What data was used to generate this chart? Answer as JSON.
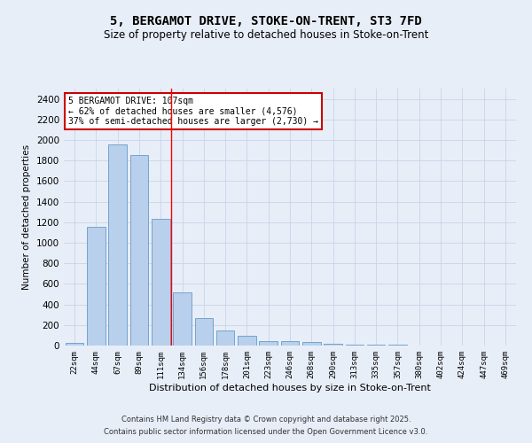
{
  "title_line1": "5, BERGAMOT DRIVE, STOKE-ON-TRENT, ST3 7FD",
  "title_line2": "Size of property relative to detached houses in Stoke-on-Trent",
  "xlabel": "Distribution of detached houses by size in Stoke-on-Trent",
  "ylabel": "Number of detached properties",
  "categories": [
    "22sqm",
    "44sqm",
    "67sqm",
    "89sqm",
    "111sqm",
    "134sqm",
    "156sqm",
    "178sqm",
    "201sqm",
    "223sqm",
    "246sqm",
    "268sqm",
    "290sqm",
    "313sqm",
    "335sqm",
    "357sqm",
    "380sqm",
    "402sqm",
    "424sqm",
    "447sqm",
    "469sqm"
  ],
  "values": [
    25,
    1155,
    1960,
    1850,
    1230,
    520,
    270,
    150,
    95,
    42,
    40,
    38,
    20,
    10,
    8,
    5,
    3,
    2,
    2,
    1,
    2
  ],
  "bar_color": "#b8d0eb",
  "bar_edge_color": "#6699cc",
  "grid_color": "#c8d4e8",
  "background_color": "#e8eef8",
  "redline_x": 4.5,
  "annotation_text": "5 BERGAMOT DRIVE: 107sqm\n← 62% of detached houses are smaller (4,576)\n37% of semi-detached houses are larger (2,730) →",
  "annotation_box_color": "#ffffff",
  "annotation_box_edge": "#cc0000",
  "footnote1": "Contains HM Land Registry data © Crown copyright and database right 2025.",
  "footnote2": "Contains public sector information licensed under the Open Government Licence v3.0.",
  "ylim": [
    0,
    2500
  ],
  "yticks": [
    0,
    200,
    400,
    600,
    800,
    1000,
    1200,
    1400,
    1600,
    1800,
    2000,
    2200,
    2400
  ]
}
